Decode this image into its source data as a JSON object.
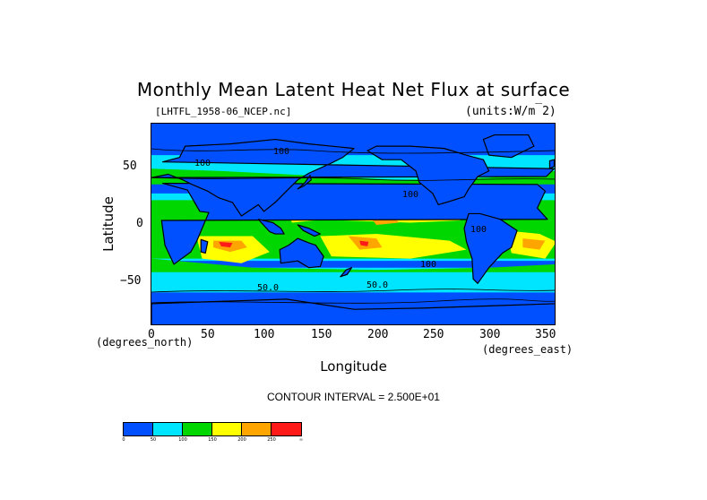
{
  "chart_data": {
    "type": "heatmap",
    "title": "Monthly Mean Latent Heat Net Flux at surface",
    "file_label": "[LHTFL_1958-06_NCEP.nc]",
    "units": "(units:W/m^2)",
    "xlabel": "Longitude",
    "ylabel": "Latitude",
    "x_units": "(degrees_east)",
    "y_units": "(degrees_north)",
    "xlim": [
      0,
      360
    ],
    "ylim": [
      -90,
      90
    ],
    "x_ticks": [
      "0",
      "50",
      "100",
      "150",
      "200",
      "250",
      "300",
      "350"
    ],
    "y_ticks": [
      "50",
      "0",
      "−50"
    ],
    "contour_interval": "CONTOUR INTERVAL = 2.500E+01",
    "contour_labels": [
      "100",
      "100",
      "100",
      "100",
      "100",
      "50.0",
      "50.0"
    ],
    "colorbar": {
      "levels": [
        "0",
        "50",
        "100",
        "150",
        "200",
        "250",
        "∞"
      ],
      "colors": [
        "#0050ff",
        "#00e5ff",
        "#00d600",
        "#ffff00",
        "#ffa500",
        "#ff1a1a"
      ]
    }
  }
}
